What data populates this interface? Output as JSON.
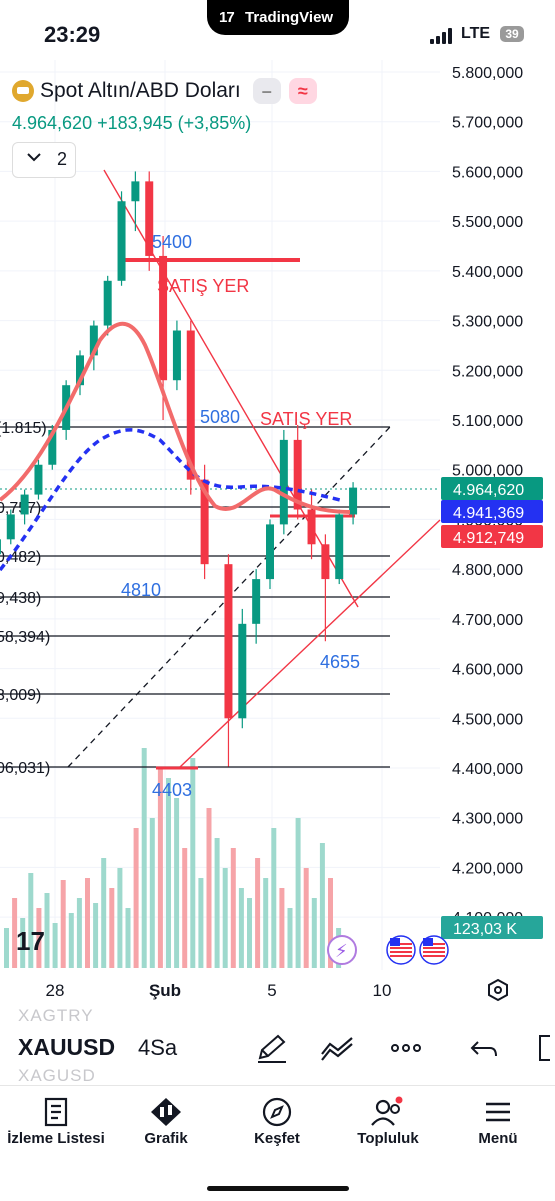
{
  "status_bar": {
    "time": "23:29",
    "network": "LTE",
    "battery": "39"
  },
  "app_pill": {
    "brand": "TradingView"
  },
  "header": {
    "symbol_name": "Spot Altın/ABD Doları",
    "price": "4.964,620",
    "change": "+183,945 (+3,85%)",
    "indicator_count": "2"
  },
  "price_axis": {
    "ticks": [
      "5.800,000",
      "5.700,000",
      "5.600,000",
      "5.500,000",
      "5.400,000",
      "5.300,000",
      "5.200,000",
      "5.100,000",
      "5.000,000",
      "4.900,000",
      "4.800,000",
      "4.700,000",
      "4.600,000",
      "4.500,000",
      "4.400,000",
      "4.300,000",
      "4.200,000",
      "4.100,000"
    ],
    "badges": [
      {
        "label": "4.964,620",
        "color": "#089981"
      },
      {
        "label": "4.941,369",
        "color": "#2431f2"
      },
      {
        "label": "4.912,749",
        "color": "#f23645"
      },
      {
        "label": "123,03 K",
        "color": "#26a69a"
      }
    ]
  },
  "time_axis": {
    "ticks": [
      "28",
      "Şub",
      "5",
      "10"
    ]
  },
  "fib_labels": [
    "(1.815)",
    "0,757)",
    "0,482)",
    "9,438)",
    "58,394)",
    "3,009)",
    "06,031)"
  ],
  "annotations": {
    "level_5400": "5400",
    "sell_1": "SATIŞ YER",
    "level_5080": "5080",
    "sell_2": "SATIŞ YER",
    "level_4810": "4810",
    "level_4655": "4655",
    "level_4403": "4403"
  },
  "chart_data": {
    "type": "candlestick",
    "price_range": [
      4100,
      5800
    ],
    "candles_approx": [
      {
        "o": 4830,
        "h": 4870,
        "l": 4800,
        "c": 4860
      },
      {
        "o": 4860,
        "h": 4920,
        "l": 4850,
        "c": 4910
      },
      {
        "o": 4910,
        "h": 4960,
        "l": 4890,
        "c": 4950
      },
      {
        "o": 4950,
        "h": 5020,
        "l": 4940,
        "c": 5010
      },
      {
        "o": 5010,
        "h": 5090,
        "l": 5000,
        "c": 5080
      },
      {
        "o": 5080,
        "h": 5180,
        "l": 5060,
        "c": 5170
      },
      {
        "o": 5170,
        "h": 5240,
        "l": 5150,
        "c": 5230
      },
      {
        "o": 5230,
        "h": 5300,
        "l": 5200,
        "c": 5290
      },
      {
        "o": 5290,
        "h": 5390,
        "l": 5270,
        "c": 5380
      },
      {
        "o": 5380,
        "h": 5560,
        "l": 5370,
        "c": 5540
      },
      {
        "o": 5540,
        "h": 5600,
        "l": 5480,
        "c": 5580
      },
      {
        "o": 5580,
        "h": 5600,
        "l": 5400,
        "c": 5430
      },
      {
        "o": 5430,
        "h": 5470,
        "l": 5100,
        "c": 5180
      },
      {
        "o": 5180,
        "h": 5300,
        "l": 5160,
        "c": 5280
      },
      {
        "o": 5280,
        "h": 5300,
        "l": 4950,
        "c": 4980
      },
      {
        "o": 4980,
        "h": 5010,
        "l": 4780,
        "c": 4810
      },
      {
        "o": 4810,
        "h": 4830,
        "l": 4403,
        "c": 4500
      },
      {
        "o": 4500,
        "h": 4720,
        "l": 4480,
        "c": 4690
      },
      {
        "o": 4690,
        "h": 4800,
        "l": 4650,
        "c": 4780
      },
      {
        "o": 4780,
        "h": 4900,
        "l": 4760,
        "c": 4890
      },
      {
        "o": 4890,
        "h": 5080,
        "l": 4870,
        "c": 5060
      },
      {
        "o": 5060,
        "h": 5090,
        "l": 4900,
        "c": 4920
      },
      {
        "o": 4920,
        "h": 4960,
        "l": 4820,
        "c": 4850
      },
      {
        "o": 4850,
        "h": 4870,
        "l": 4655,
        "c": 4780
      },
      {
        "o": 4780,
        "h": 4920,
        "l": 4770,
        "c": 4910
      },
      {
        "o": 4910,
        "h": 4975,
        "l": 4890,
        "c": 4964
      }
    ]
  },
  "toolbar": {
    "ticker": "XAUUSD",
    "interval": "4Sa",
    "ghost_above": "XAGTRY",
    "ghost_below": "XAGUSD"
  },
  "nav": {
    "items": [
      "İzleme Listesi",
      "Grafik",
      "Keşfet",
      "Topluluk",
      "Menü"
    ]
  }
}
